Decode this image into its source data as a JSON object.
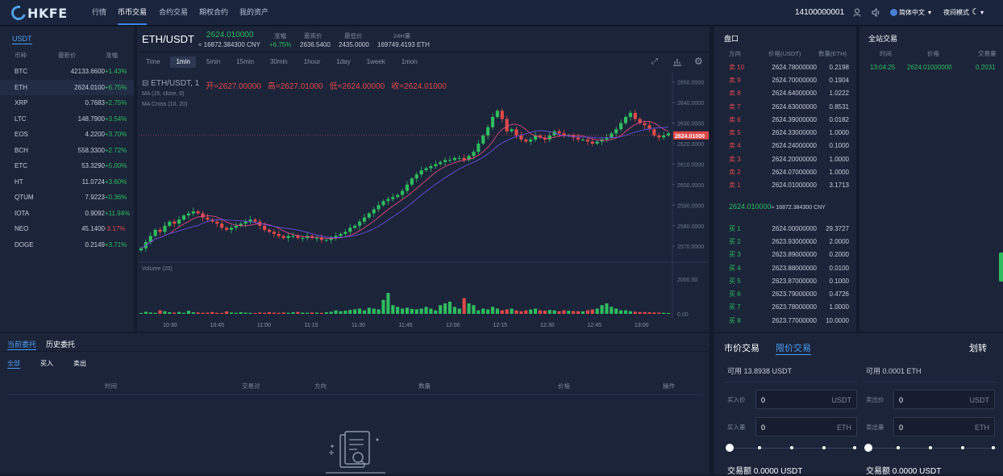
{
  "brand": {
    "name": "HKFE"
  },
  "nav": [
    "行情",
    "币币交易",
    "合约交易",
    "期权合约",
    "我的资产"
  ],
  "user": {
    "account": "14100000001",
    "lang": "简体中文",
    "mode": "夜间模式"
  },
  "market": {
    "tab": "USDT",
    "headers": [
      "币种",
      "最新价",
      "涨幅"
    ],
    "rows": [
      {
        "coin": "BTC",
        "price": "42133.6600",
        "change": "+1.43%",
        "dir": "up"
      },
      {
        "coin": "ETH",
        "price": "2624.0100",
        "change": "+6.75%",
        "dir": "up"
      },
      {
        "coin": "XRP",
        "price": "0.7683",
        "change": "+2.75%",
        "dir": "up"
      },
      {
        "coin": "LTC",
        "price": "148.7900",
        "change": "+3.54%",
        "dir": "up"
      },
      {
        "coin": "EOS",
        "price": "4.2200",
        "change": "+3.70%",
        "dir": "up"
      },
      {
        "coin": "BCH",
        "price": "558.3300",
        "change": "+2.72%",
        "dir": "up"
      },
      {
        "coin": "ETC",
        "price": "53.3290",
        "change": "+5.00%",
        "dir": "up"
      },
      {
        "coin": "HT",
        "price": "11.0724",
        "change": "+3.60%",
        "dir": "up"
      },
      {
        "coin": "QTUM",
        "price": "7.9223",
        "change": "+0.36%",
        "dir": "up"
      },
      {
        "coin": "IOTA",
        "price": "0.9092",
        "change": "+11.94%",
        "dir": "up"
      },
      {
        "coin": "NEO",
        "price": "45.1400",
        "change": "-3.17%",
        "dir": "down"
      },
      {
        "coin": "DOGE",
        "price": "0.2149",
        "change": "+3.71%",
        "dir": "up"
      }
    ]
  },
  "ticker": {
    "pair": "ETH/USDT",
    "price": "2624.010000",
    "cny": "≈ 16872.384300 CNY",
    "change_label": "涨幅",
    "change": "+6.75%",
    "high_label": "最高价",
    "high": "2636.5400",
    "low_label": "最低价",
    "low": "2435.0000",
    "vol_label": "24H量",
    "vol": "169749.4193 ETH"
  },
  "chart_toolbar": {
    "intervals": [
      "Time",
      "1min",
      "5min",
      "15min",
      "30min",
      "1hour",
      "1day",
      "1week",
      "1mon"
    ],
    "active": "1min"
  },
  "chart_data": {
    "type": "candlestick",
    "legend": "ETH/USDT, 1",
    "ohlc_text": {
      "open": "开=2627.00000",
      "high": "高=2627.01000",
      "low": "低=2624.00000",
      "close": "收=2624.01000"
    },
    "indicators": [
      "MA (15, close, 0)",
      "MA Cross (10, 20)"
    ],
    "volume_label": "Volume (20)",
    "price_ticks": [
      "2650.0000",
      "2640.0000",
      "2630.0000",
      "2620.0000",
      "2610.0000",
      "2600.0000",
      "2590.0000",
      "2580.0000",
      "2570.0000"
    ],
    "ylim": [
      2563,
      2655
    ],
    "volume_ticks": [
      "2000.00",
      "0.00"
    ],
    "volume_ylim": [
      0,
      2500
    ],
    "time_ticks": [
      "10:30",
      "10:45",
      "11:00",
      "11:15",
      "11:30",
      "11:45",
      "12:00",
      "12:15",
      "12:30",
      "12:45",
      "13:00"
    ],
    "last_price": "2624.01000",
    "close_path": [
      2569,
      2572,
      2575,
      2578,
      2577,
      2580,
      2582,
      2581,
      2583,
      2585,
      2586,
      2587,
      2586,
      2584,
      2583,
      2582,
      2581,
      2579,
      2578,
      2579,
      2580,
      2581,
      2582,
      2583,
      2582,
      2580,
      2578,
      2577,
      2576,
      2575,
      2574,
      2575,
      2575,
      2574,
      2574,
      2575,
      2574,
      2574,
      2573,
      2573,
      2574,
      2575,
      2576,
      2577,
      2579,
      2580,
      2582,
      2584,
      2586,
      2588,
      2590,
      2592,
      2593,
      2594,
      2595,
      2597,
      2600,
      2603,
      2605,
      2607,
      2608,
      2609,
      2610,
      2611,
      2612,
      2612,
      2613,
      2613,
      2612,
      2614,
      2616,
      2620,
      2624,
      2628,
      2633,
      2636,
      2632,
      2626,
      2627,
      2624,
      2622,
      2621,
      2622,
      2624,
      2623,
      2622,
      2624,
      2626,
      2625,
      2624,
      2624,
      2623,
      2622,
      2622,
      2621,
      2620,
      2621,
      2622,
      2623,
      2625,
      2627,
      2630,
      2633,
      2635,
      2632,
      2630,
      2629,
      2627,
      2624,
      2623,
      2624,
      2625
    ],
    "volume": [
      50,
      120,
      80,
      60,
      200,
      150,
      90,
      70,
      110,
      60,
      180,
      90,
      80,
      60,
      70,
      100,
      60,
      50,
      140,
      80,
      60,
      90,
      70,
      60,
      50,
      80,
      60,
      100,
      70,
      60,
      80,
      60,
      90,
      110,
      70,
      60,
      80,
      70,
      60,
      90,
      120,
      200,
      150,
      180,
      220,
      260,
      300,
      200,
      350,
      300,
      250,
      800,
      1200,
      500,
      400,
      300,
      350,
      280,
      260,
      300,
      400,
      300,
      200,
      500,
      600,
      700,
      400,
      300,
      900,
      600,
      500,
      200,
      300,
      250,
      400,
      300,
      200,
      250,
      300,
      200,
      150,
      200,
      250,
      300,
      200,
      180,
      220,
      200,
      150,
      200,
      180,
      160,
      150,
      140,
      200,
      250,
      300,
      500,
      600,
      400,
      300,
      200,
      200,
      150,
      120,
      100,
      100,
      90,
      80,
      70,
      60,
      50
    ]
  },
  "orderbook": {
    "title": "盘口",
    "headers": [
      "方向",
      "价格(USDT)",
      "数量(ETH)"
    ],
    "asks": [
      {
        "label": "卖 10",
        "price": "2624.78000000",
        "qty": "0.2198"
      },
      {
        "label": "卖 9",
        "price": "2624.70000000",
        "qty": "0.1904"
      },
      {
        "label": "卖 8",
        "price": "2624.64000000",
        "qty": "1.0222"
      },
      {
        "label": "卖 7",
        "price": "2624.63000000",
        "qty": "0.8531"
      },
      {
        "label": "卖 6",
        "price": "2624.39000000",
        "qty": "0.0182"
      },
      {
        "label": "卖 5",
        "price": "2624.33000000",
        "qty": "1.0000"
      },
      {
        "label": "卖 4",
        "price": "2624.24000000",
        "qty": "0.1000"
      },
      {
        "label": "卖 3",
        "price": "2624.20000000",
        "qty": "1.0000"
      },
      {
        "label": "卖 2",
        "price": "2624.07000000",
        "qty": "1.0000"
      },
      {
        "label": "卖 1",
        "price": "2624.01000000",
        "qty": "3.1713"
      }
    ],
    "mid_price": "2624.010000",
    "mid_cny": "≈ 16872.384300 CNY",
    "bids": [
      {
        "label": "买 1",
        "price": "2624.00000000",
        "qty": "29.3727"
      },
      {
        "label": "买 2",
        "price": "2623.93000000",
        "qty": "2.0000"
      },
      {
        "label": "买 3",
        "price": "2623.89000000",
        "qty": "0.2000"
      },
      {
        "label": "买 4",
        "price": "2623.88000000",
        "qty": "0.0100"
      },
      {
        "label": "买 5",
        "price": "2623.87000000",
        "qty": "0.1000"
      },
      {
        "label": "买 6",
        "price": "2623.79000000",
        "qty": "0.4726"
      },
      {
        "label": "买 7",
        "price": "2623.78000000",
        "qty": "1.0000"
      },
      {
        "label": "买 8",
        "price": "2623.77000000",
        "qty": "10.0000"
      }
    ]
  },
  "trades": {
    "title": "全站交易",
    "headers": [
      "时间",
      "价格",
      "交易量"
    ],
    "rows": [
      {
        "time": "13:04:25",
        "price": "2624.01000000",
        "qty": "0.2031"
      }
    ]
  },
  "orders": {
    "tabs": [
      "当前委托",
      "历史委托"
    ],
    "filters": [
      "全部",
      "买入",
      "卖出"
    ],
    "headers": [
      "时间",
      "交易对",
      "方向",
      "数量",
      "价格",
      "操作"
    ]
  },
  "trade_form": {
    "tabs": [
      "市价交易",
      "限价交易"
    ],
    "transfer": "划转",
    "buy": {
      "avail": "可用 13.8938 USDT",
      "price_label": "买入价",
      "price": "0",
      "price_unit": "USDT",
      "qty_label": "买入量",
      "qty": "0",
      "qty_unit": "ETH",
      "total": "交易额 0.0000 USDT"
    },
    "sell": {
      "avail": "可用 0.0001 ETH",
      "price_label": "卖出价",
      "price": "0",
      "price_unit": "USDT",
      "qty_label": "卖出量",
      "qty": "0",
      "qty_unit": "ETH",
      "total": "交易额 0.0000 USDT"
    }
  },
  "colors": {
    "up": "#2ebd5f",
    "down": "#e04a4a",
    "accent": "#3f84e5",
    "bg": "#131b2d",
    "panel": "#1b2439"
  }
}
